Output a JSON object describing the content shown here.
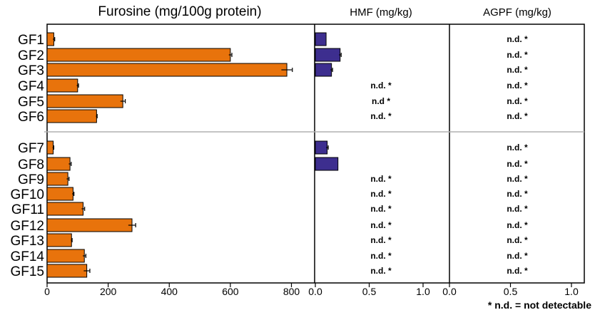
{
  "chart_data": {
    "type": "bar",
    "orientation": "horizontal",
    "categories": [
      "GF1",
      "GF2",
      "GF3",
      "GF4",
      "GF5",
      "GF6",
      "GF7",
      "GF8",
      "GF9",
      "GF10",
      "GF11",
      "GF12",
      "GF13",
      "GF14",
      "GF15"
    ],
    "groups": [
      [
        "GF1",
        "GF2",
        "GF3",
        "GF4",
        "GF5",
        "GF6"
      ],
      [
        "GF7",
        "GF8",
        "GF9",
        "GF10",
        "GF11",
        "GF12",
        "GF13",
        "GF14",
        "GF15"
      ]
    ],
    "panels": [
      {
        "title": "Furosine (mg/100g protein)",
        "xlim": [
          0,
          900
        ],
        "ticks": [
          0,
          200,
          400,
          600,
          800
        ],
        "tick_labels": [
          "0",
          "200",
          "400",
          "600",
          "800"
        ],
        "color": "#e8730c",
        "values": [
          22,
          600,
          785,
          100,
          248,
          162,
          20,
          75,
          68,
          85,
          118,
          278,
          80,
          122,
          130
        ],
        "errors": [
          3,
          5,
          18,
          3,
          8,
          2,
          2,
          4,
          4,
          3,
          5,
          12,
          2,
          5,
          10
        ],
        "labels": []
      },
      {
        "title": "HMF (mg/kg)",
        "xlim": [
          0,
          1.25
        ],
        "ticks": [
          0,
          0.5,
          1.0
        ],
        "tick_labels": [
          "0.0",
          "0.5",
          "1.0"
        ],
        "color": "#3d2e8f",
        "values": [
          0.1,
          0.23,
          0.15,
          null,
          null,
          null,
          0.11,
          0.21,
          null,
          null,
          null,
          null,
          null,
          null,
          null
        ],
        "errors": [
          0,
          0.01,
          0.01,
          null,
          null,
          null,
          0.01,
          0,
          null,
          null,
          null,
          null,
          null,
          null,
          null
        ],
        "labels": [
          null,
          null,
          null,
          "n.d. *",
          "n.d *",
          "n.d. *",
          null,
          null,
          "n.d. *",
          "n.d. *",
          "n.d. *",
          "n.d. *",
          "n.d. *",
          "n.d. *",
          "n.d. *"
        ]
      },
      {
        "title": "AGPF (mg/kg)",
        "xlim": [
          0,
          1.25
        ],
        "ticks": [
          0,
          0.5,
          1.0
        ],
        "tick_labels": [
          "0.0",
          "0.5",
          "1.0"
        ],
        "color": "#3d2e8f",
        "values": [
          null,
          null,
          null,
          null,
          null,
          null,
          null,
          null,
          null,
          null,
          null,
          null,
          null,
          null,
          null
        ],
        "errors": [],
        "labels": [
          "n.d. *",
          "n.d. *",
          "n.d. *",
          "n.d. *",
          "n.d. *",
          "n.d. *",
          "n.d. *",
          "n.d. *",
          "n.d. *",
          "n.d. *",
          "n.d. *",
          "n.d. *",
          "n.d. *",
          "n.d. *",
          "n.d. *"
        ]
      }
    ],
    "footnote": "* n.d. = not detectable"
  }
}
